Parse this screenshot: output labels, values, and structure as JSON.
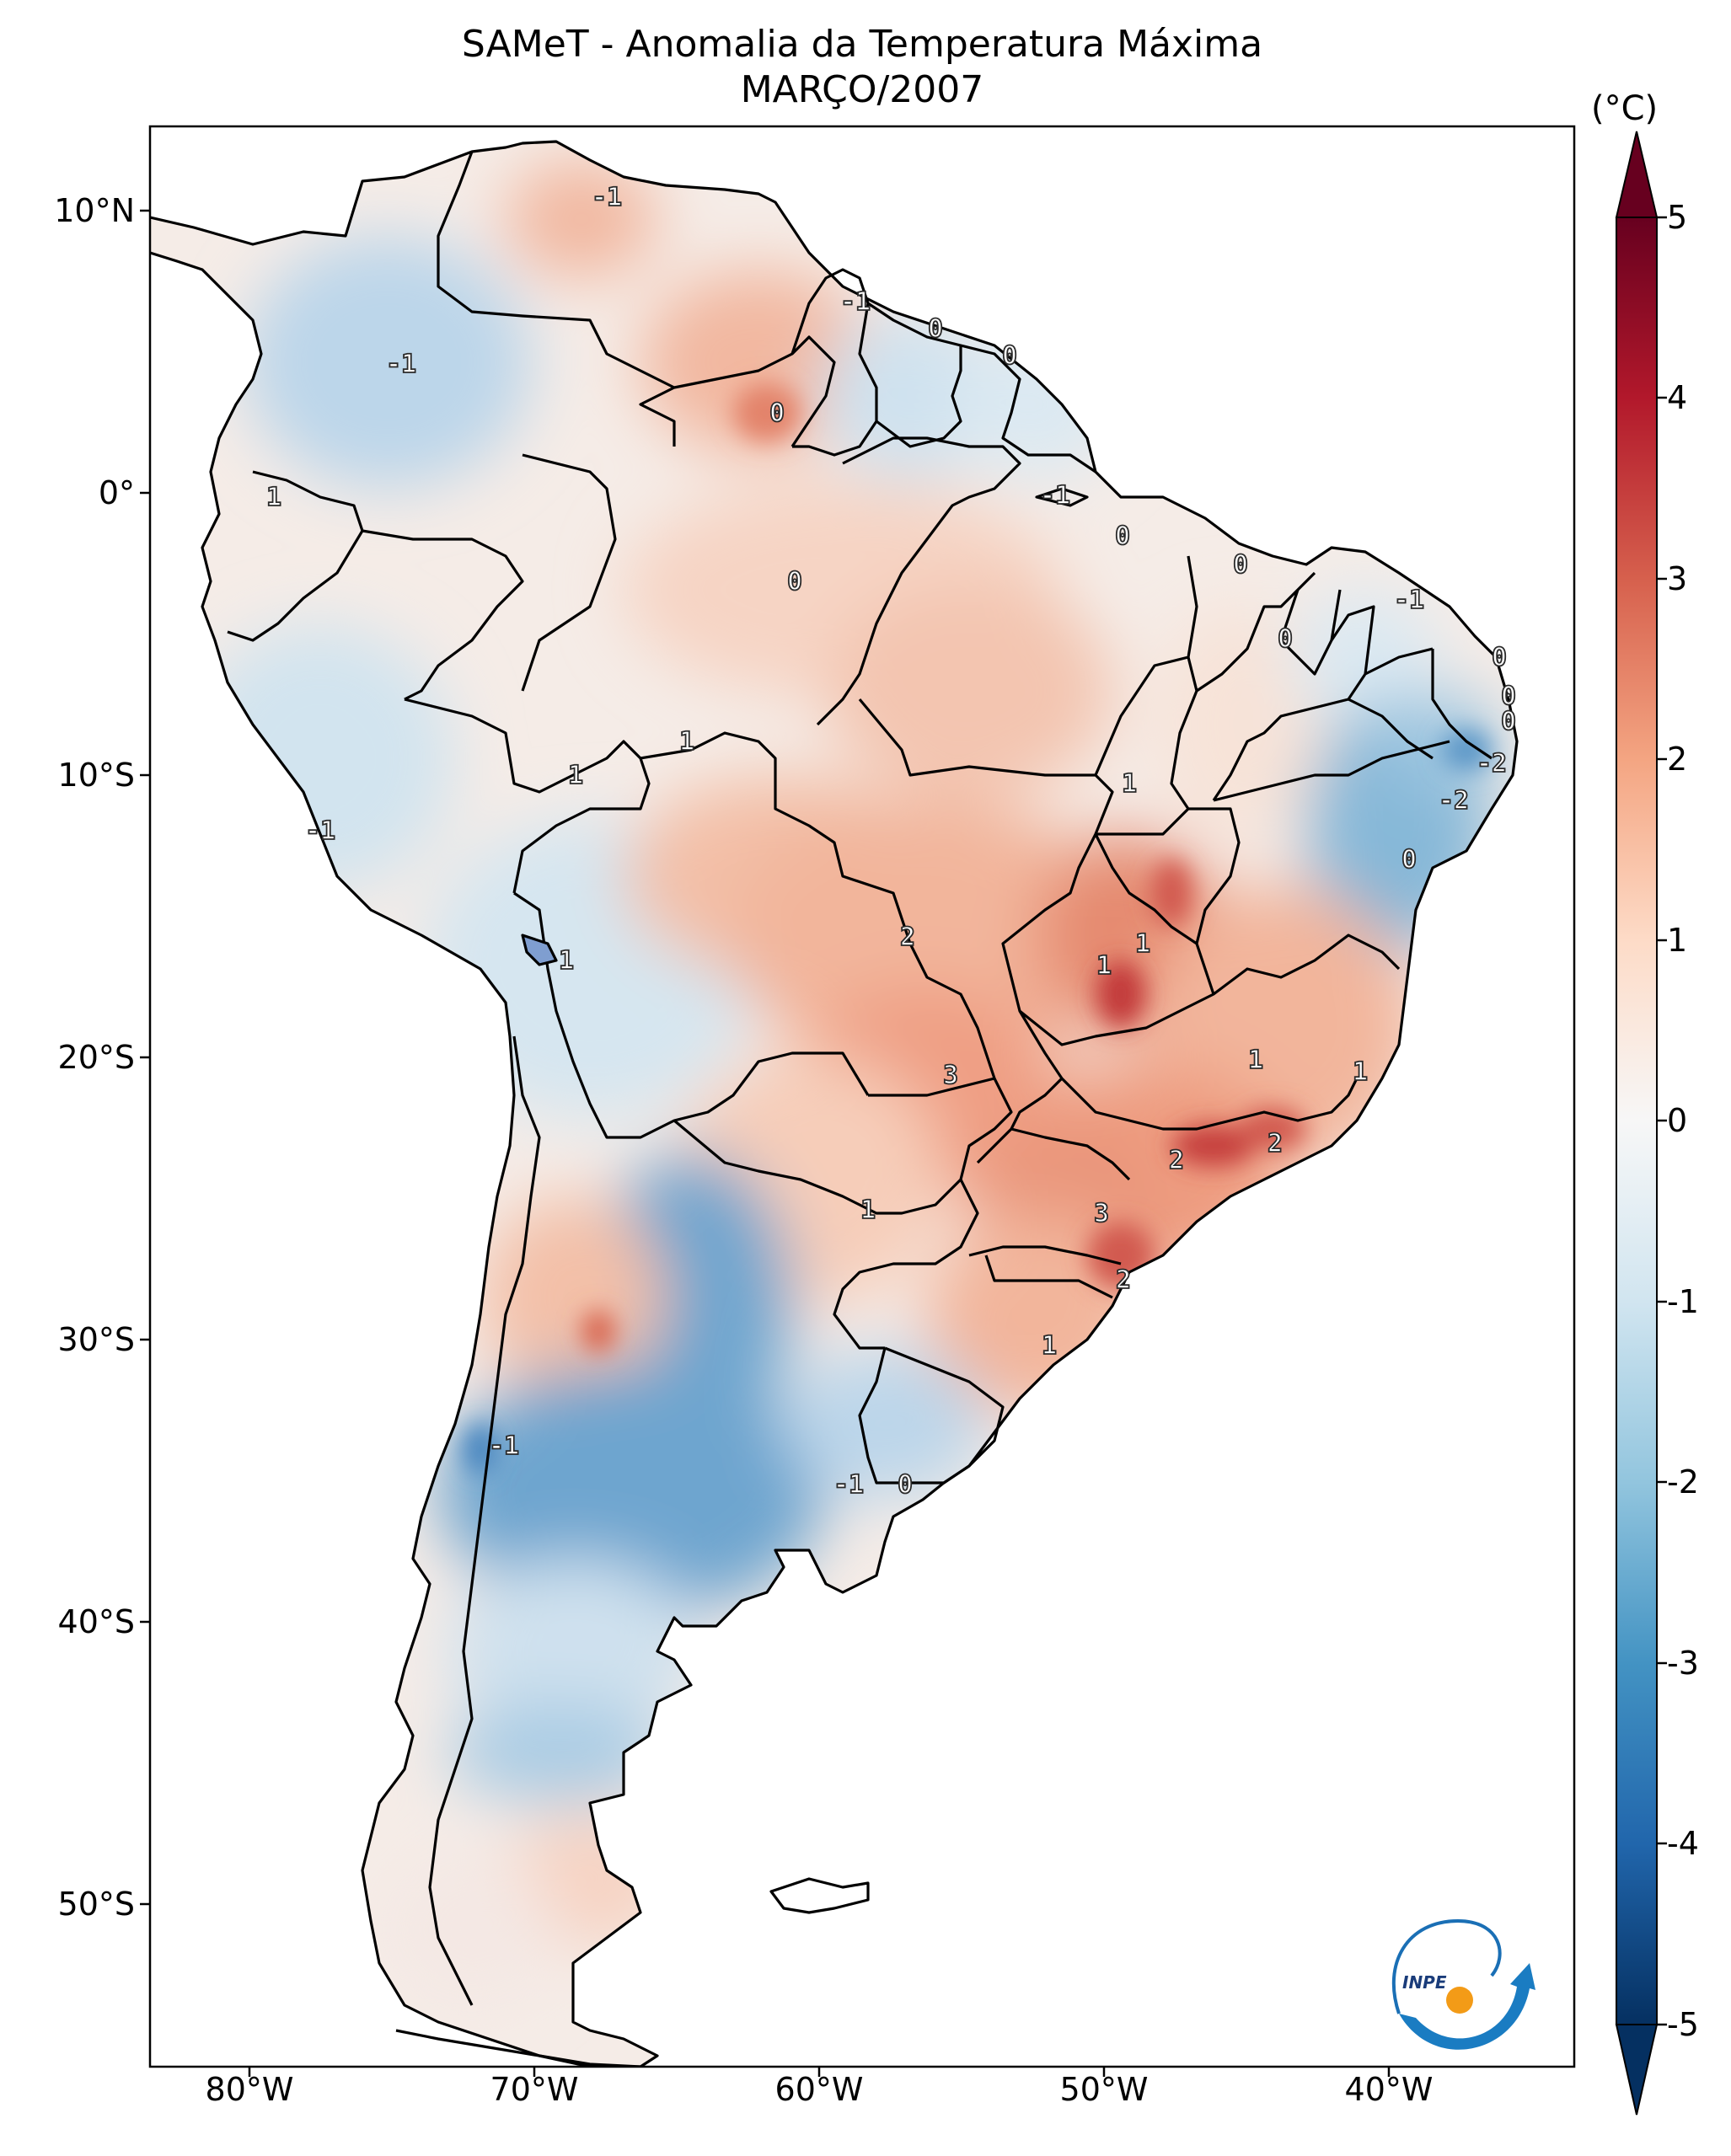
{
  "title_line1": "SAMeT - Anomalia da Temperatura Máxima",
  "title_line2": "MARÇO/2007",
  "colorbar": {
    "unit": "(°C)",
    "min": -5,
    "max": 5,
    "tick_labels": [
      "5",
      "4",
      "3",
      "2",
      "1",
      "0",
      "-1",
      "-2",
      "-3",
      "-4",
      "-5"
    ],
    "colormap": "RdBu_r",
    "colors": [
      "#053061",
      "#2166ac",
      "#4393c3",
      "#92c5de",
      "#d1e5f0",
      "#f7f7f7",
      "#fddbc7",
      "#f4a582",
      "#d6604d",
      "#b2182b",
      "#67001f"
    ]
  },
  "lat_ticks": [
    "10°N",
    "0°",
    "10°S",
    "20°S",
    "30°S",
    "40°S",
    "50°S"
  ],
  "lon_ticks": [
    "80°W",
    "70°W",
    "60°W",
    "50°W",
    "40°W"
  ],
  "contour_labels": [
    "-1",
    "-1",
    "0",
    "0",
    "-1",
    "0",
    "-1",
    "0",
    "0",
    "-1",
    "1",
    "0",
    "0",
    "0",
    "0",
    "0",
    "-2",
    "-2",
    "1",
    "1",
    "1",
    "0",
    "-1",
    "2",
    "1",
    "1",
    "1",
    "1",
    "3",
    "1",
    "2",
    "2",
    "3",
    "2",
    "1",
    "1",
    "-1",
    "-1",
    "0"
  ],
  "logo_text": "INPE",
  "chart_data": {
    "type": "heatmap",
    "title": "SAMeT - Anomalia da Temperatura Máxima",
    "subtitle": "MARÇO/2007",
    "colorbar_label": "(°C)",
    "value_range": [
      -5,
      5
    ],
    "lon_range": [
      -83,
      -33
    ],
    "lat_range": [
      -56,
      13
    ],
    "contour_label_values": [
      -1,
      -1,
      0,
      0,
      -1,
      0,
      -1,
      0,
      0,
      -1,
      1,
      0,
      0,
      0,
      0,
      0,
      -2,
      -2,
      1,
      1,
      1,
      0,
      -1,
      2,
      1,
      1,
      1,
      1,
      3,
      1,
      2,
      2,
      3,
      2,
      1,
      1,
      -1,
      -1,
      0
    ]
  }
}
